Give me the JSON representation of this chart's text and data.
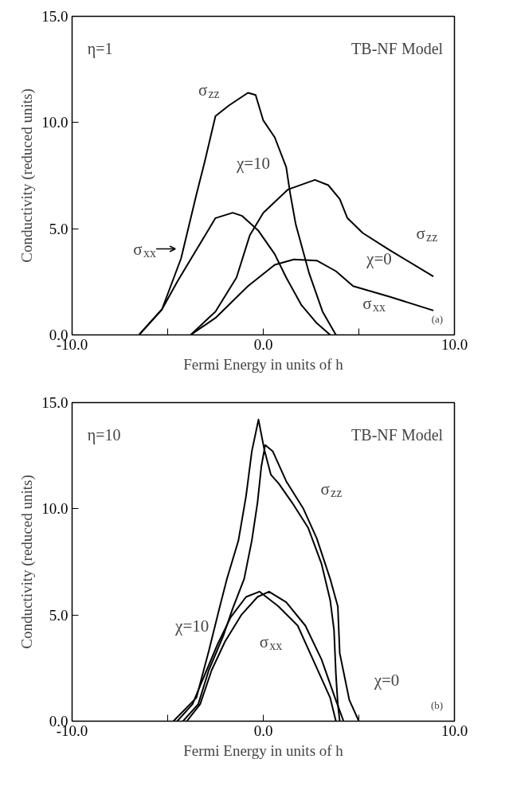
{
  "chart_data": [
    {
      "type": "line",
      "xlabel": "Fermi Energy in units of h",
      "ylabel": "Conductivity (reduced units)",
      "xlim": [
        -10,
        10
      ],
      "ylim": [
        0,
        15
      ],
      "xticks": [
        {
          "value": -10,
          "label": "-10.0"
        },
        {
          "value": -5,
          "label": null
        },
        {
          "value": 0,
          "label": "0.0"
        },
        {
          "value": 5,
          "label": null
        },
        {
          "value": 10,
          "label": "10.0"
        }
      ],
      "yticks": [
        {
          "value": 0,
          "label": "0.0"
        },
        {
          "value": 5,
          "label": "5.0"
        },
        {
          "value": 10,
          "label": "10.0"
        },
        {
          "value": 15,
          "label": "15.0"
        }
      ],
      "grid": false,
      "marker": "none",
      "line_style": "solid",
      "series": [
        {
          "color": "#000000",
          "x": [
            -6.5,
            -5.3,
            -4.3,
            -3.5,
            -3.05,
            -2.5,
            -1.8,
            -0.8,
            -0.4,
            0.0,
            0.6,
            1.2,
            1.4,
            1.7,
            2.4,
            3.1,
            3.8
          ],
          "values": [
            0,
            1.2,
            3.6,
            6.6,
            8.2,
            10.3,
            10.8,
            11.4,
            11.3,
            10.1,
            9.3,
            7.9,
            6.7,
            5.2,
            2.9,
            1.1,
            0
          ]
        },
        {
          "color": "#000000",
          "x": [
            -6.5,
            -5.3,
            -4.5,
            -3.5,
            -2.5,
            -1.6,
            -1.1,
            -0.25,
            0.6,
            1.2,
            2.0,
            2.8,
            3.5
          ],
          "values": [
            0,
            1.2,
            2.5,
            4.0,
            5.5,
            5.75,
            5.6,
            4.9,
            3.8,
            2.7,
            1.4,
            0.55,
            0
          ]
        },
        {
          "color": "#000000",
          "x": [
            -3.8,
            -2.5,
            -1.4,
            -0.7,
            0.0,
            1.3,
            2.7,
            3.4,
            4.0,
            4.4,
            5.2,
            6.6,
            8.9
          ],
          "values": [
            0,
            1.1,
            2.7,
            4.7,
            5.75,
            6.85,
            7.3,
            7.05,
            6.4,
            5.5,
            4.8,
            4.0,
            2.75
          ]
        },
        {
          "color": "#000000",
          "x": [
            -3.8,
            -2.5,
            -0.8,
            0.6,
            1.6,
            2.8,
            3.8,
            4.7,
            6.6,
            8.9
          ],
          "values": [
            0,
            0.8,
            2.3,
            3.3,
            3.55,
            3.5,
            3.0,
            2.3,
            1.8,
            1.15
          ]
        }
      ],
      "annotations": [
        "η=1",
        "TB-NF Model",
        "(a)",
        "σ$_{zz}$",
        "χ=10",
        "σ$_{xx}$",
        "σ$_{zz}$",
        "χ=0",
        "σ$_{xx}$"
      ]
    },
    {
      "type": "line",
      "xlabel": "Fermi Energy in units of h",
      "ylabel": "Conductivity (reduced units)",
      "xlim": [
        -10,
        10
      ],
      "ylim": [
        0,
        15
      ],
      "xticks": [
        {
          "value": -10,
          "label": "-10.0"
        },
        {
          "value": -5,
          "label": null
        },
        {
          "value": 0,
          "label": "0.0"
        },
        {
          "value": 5,
          "label": null
        },
        {
          "value": 10,
          "label": "10.0"
        }
      ],
      "yticks": [
        {
          "value": 0,
          "label": "0.0"
        },
        {
          "value": 5,
          "label": "5.0"
        },
        {
          "value": 10,
          "label": "10.0"
        },
        {
          "value": 15,
          "label": "15.0"
        }
      ],
      "grid": false,
      "marker": "none",
      "line_style": "solid",
      "series": [
        {
          "color": "#000000",
          "x": [
            -4.7,
            -3.5,
            -2.85,
            -2.3,
            -1.9,
            -1.3,
            -0.9,
            -0.6,
            -0.25,
            0.05,
            0.4,
            0.8,
            1.5,
            2.35,
            3.05,
            3.5,
            3.7,
            3.8,
            3.9,
            4.0
          ],
          "values": [
            0,
            1.1,
            3.3,
            5.3,
            6.7,
            8.5,
            10.6,
            12.7,
            14.2,
            12.8,
            11.6,
            11.2,
            10.3,
            9.1,
            7.4,
            5.7,
            4.3,
            2.2,
            0.8,
            0
          ]
        },
        {
          "color": "#000000",
          "x": [
            -4.2,
            -3.4,
            -2.85,
            -2.1,
            -1.6,
            -1.0,
            -0.6,
            -0.3,
            -0.1,
            0.1,
            0.5,
            1.2,
            2.1,
            2.8,
            3.5,
            3.9,
            4.0,
            4.25,
            4.5,
            5.0
          ],
          "values": [
            0,
            0.8,
            2.4,
            4.0,
            5.3,
            6.7,
            8.5,
            10.3,
            12.0,
            13.0,
            12.7,
            11.3,
            10.0,
            8.6,
            6.7,
            5.4,
            3.2,
            2.1,
            1.0,
            0
          ]
        },
        {
          "color": "#000000",
          "x": [
            -4.5,
            -3.7,
            -3.1,
            -2.4,
            -1.7,
            -0.9,
            -0.2,
            0.8,
            1.8,
            2.6,
            3.5,
            3.8
          ],
          "values": [
            0,
            0.8,
            2.1,
            3.6,
            4.9,
            5.85,
            6.1,
            5.4,
            4.5,
            2.9,
            1.1,
            0
          ]
        },
        {
          "color": "#000000",
          "x": [
            -4.0,
            -3.3,
            -2.7,
            -2.0,
            -1.15,
            -0.3,
            0.3,
            1.2,
            2.2,
            3.05,
            3.75,
            4.2
          ],
          "values": [
            0,
            0.8,
            2.4,
            3.75,
            5.0,
            5.85,
            6.1,
            5.6,
            4.5,
            2.9,
            1.1,
            0
          ]
        }
      ],
      "annotations": [
        "η=10",
        "TB-NF Model",
        "(b)",
        "σ$_{zz}$",
        "χ=10",
        "σ$_{xx}$",
        "χ=0"
      ]
    }
  ]
}
